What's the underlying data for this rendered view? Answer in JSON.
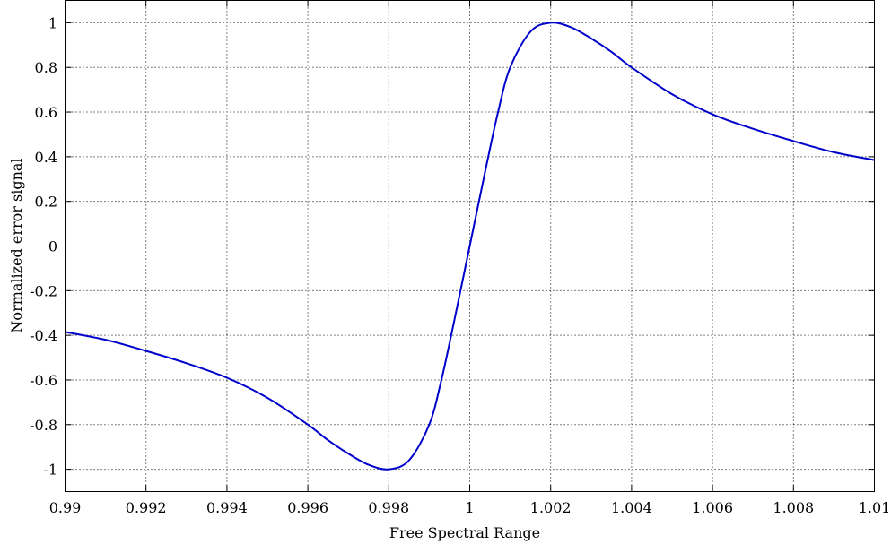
{
  "chart_data": {
    "type": "line",
    "title": "",
    "xlabel": "Free Spectral Range",
    "ylabel": "Normalized error signal",
    "xlim": [
      0.99,
      1.01
    ],
    "ylim": [
      -1.1,
      1.1
    ],
    "xticks": [
      0.99,
      0.992,
      0.994,
      0.996,
      0.998,
      1,
      1.002,
      1.004,
      1.006,
      1.008,
      1.01
    ],
    "xtick_labels": [
      "0.99",
      "0.992",
      "0.994",
      "0.996",
      "0.998",
      "1",
      "1.002",
      "1.004",
      "1.006",
      "1.008",
      "1.01"
    ],
    "yticks": [
      -1,
      -0.8,
      -0.6,
      -0.4,
      -0.2,
      0,
      0.2,
      0.4,
      0.6,
      0.8,
      1
    ],
    "ytick_labels": [
      "-1",
      "-0.8",
      "-0.6",
      "-0.4",
      "-0.2",
      "0",
      "0.2",
      "0.4",
      "0.6",
      "0.8",
      "1"
    ],
    "grid": true,
    "series": [
      {
        "color": "#0000cc",
        "x": [
          0.99,
          0.991,
          0.992,
          0.993,
          0.994,
          0.995,
          0.996,
          0.9965,
          0.997,
          0.9975,
          0.998,
          0.9985,
          0.999,
          0.9993,
          0.9996,
          1.0,
          1.0004,
          1.0007,
          1.001,
          1.0015,
          1.002,
          1.0025,
          1.003,
          1.0035,
          1.004,
          1.005,
          1.006,
          1.007,
          1.008,
          1.009,
          1.01
        ],
        "y": [
          -0.385,
          -0.42,
          -0.47,
          -0.525,
          -0.59,
          -0.68,
          -0.8,
          -0.87,
          -0.93,
          -0.98,
          -1.0,
          -0.96,
          -0.8,
          -0.6,
          -0.35,
          0.0,
          0.35,
          0.6,
          0.8,
          0.96,
          1.0,
          0.98,
          0.93,
          0.87,
          0.8,
          0.68,
          0.59,
          0.525,
          0.47,
          0.42,
          0.385
        ]
      }
    ]
  }
}
